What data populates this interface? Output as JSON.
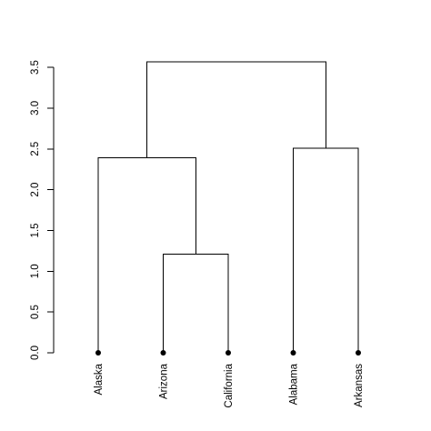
{
  "chart_data": {
    "type": "dendrogram",
    "leaves": [
      "Alaska",
      "Arizona",
      "California",
      "Alabama",
      "Arkansas"
    ],
    "ylim": [
      0,
      3.6
    ],
    "yticks": [
      0,
      0.5,
      1,
      1.5,
      2,
      2.5,
      3,
      3.5
    ],
    "ytick_labels": [
      "0.0",
      "0.5",
      "1.0",
      "1.5",
      "2.0",
      "2.5",
      "3.0",
      "3.5"
    ],
    "merges": [
      {
        "left": "leaf:Arizona",
        "right": "leaf:California",
        "height": 1.21
      },
      {
        "left": "leaf:Alaska",
        "right": "node:0",
        "height": 2.39
      },
      {
        "left": "leaf:Alabama",
        "right": "leaf:Arkansas",
        "height": 2.51
      },
      {
        "left": "node:1",
        "right": "node:2",
        "height": 3.57
      }
    ],
    "grid": false,
    "legend": "none"
  }
}
